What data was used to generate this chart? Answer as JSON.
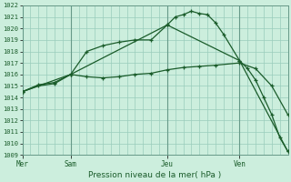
{
  "title": "Pression niveau de la mer( hPa )",
  "bg_color": "#cceedd",
  "grid_color": "#99ccbb",
  "line_color": "#1a5c2a",
  "ylim": [
    1009,
    1022
  ],
  "yticks": [
    1009,
    1010,
    1011,
    1012,
    1013,
    1014,
    1015,
    1016,
    1017,
    1018,
    1019,
    1020,
    1021,
    1022
  ],
  "day_labels": [
    "Mer",
    "Sam",
    "Jeu",
    "Ven"
  ],
  "day_positions": [
    0,
    6,
    18,
    27
  ],
  "xlim": [
    0,
    33
  ],
  "line1_x": [
    0,
    2,
    4,
    6,
    8,
    10,
    12,
    14,
    16,
    18,
    19,
    20,
    21,
    22,
    23,
    24,
    25,
    27,
    28,
    29,
    30,
    31,
    32,
    33
  ],
  "line1_y": [
    1014.5,
    1015.1,
    1015.3,
    1016.0,
    1018.0,
    1018.5,
    1018.8,
    1019.0,
    1019.0,
    1020.3,
    1021.0,
    1021.2,
    1021.5,
    1021.3,
    1021.2,
    1020.5,
    1019.5,
    1017.2,
    1016.5,
    1015.5,
    1014.0,
    1012.5,
    1010.5,
    1009.3
  ],
  "line2_x": [
    0,
    2,
    4,
    6,
    8,
    10,
    12,
    14,
    16,
    18,
    20,
    22,
    24,
    27,
    29,
    31,
    33
  ],
  "line2_y": [
    1014.5,
    1015.0,
    1015.2,
    1016.0,
    1015.8,
    1015.7,
    1015.8,
    1016.0,
    1016.1,
    1016.4,
    1016.6,
    1016.7,
    1016.8,
    1017.0,
    1016.5,
    1015.0,
    1012.5
  ],
  "line3_x": [
    0,
    6,
    18,
    27,
    33
  ],
  "line3_y": [
    1014.5,
    1016.0,
    1020.3,
    1017.2,
    1009.3
  ]
}
